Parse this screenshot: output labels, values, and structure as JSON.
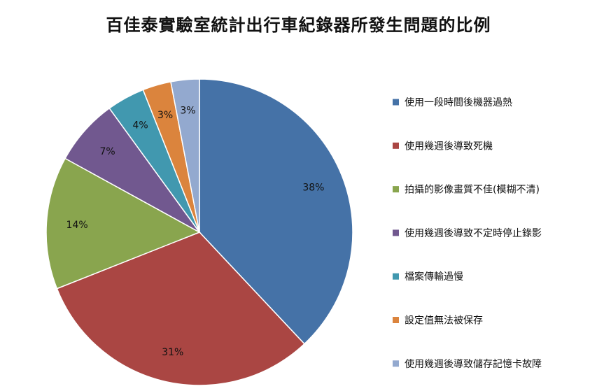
{
  "chart_data": {
    "type": "pie",
    "title": "百佳泰實驗室統計出行車紀錄器所發生問題的比例",
    "categories": [
      "使用一段時間後機器過熱",
      "使用幾週後導致死機",
      "拍攝的影像畫質不佳(模糊不清)",
      "使用幾週後導致不定時停止錄影",
      "檔案傳輸過慢",
      "設定值無法被保存",
      "使用幾週後導致儲存記憶卡故障"
    ],
    "values": [
      38,
      31,
      14,
      7,
      4,
      3,
      3
    ],
    "value_labels": [
      "38%",
      "31%",
      "14%",
      "7%",
      "4%",
      "3%",
      "3%"
    ],
    "colors": [
      "#4572A7",
      "#AA4643",
      "#89A54E",
      "#71588F",
      "#4198AF",
      "#DB843D",
      "#93A9CF"
    ],
    "legend_position": "right"
  }
}
